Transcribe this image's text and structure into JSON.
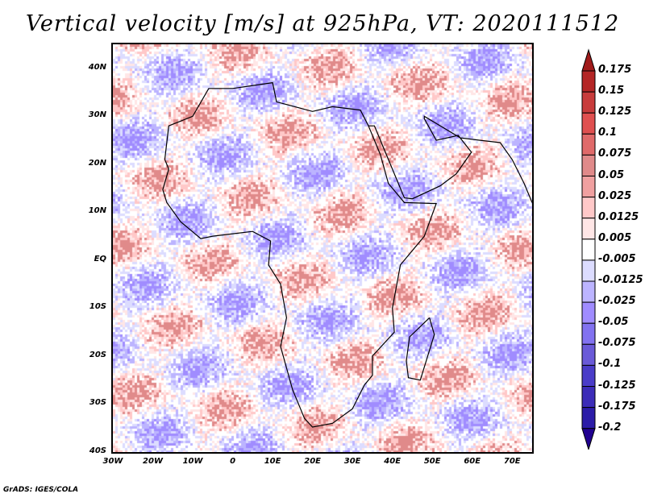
{
  "title": "Vertical velocity [m/s] at 925hPa, VT: 2020111512",
  "credit": "GrADS: IGES/COLA",
  "map": {
    "lon_range": [
      -30,
      75
    ],
    "lat_range": [
      -40,
      45
    ],
    "lat_labels": [
      {
        "lat": 40,
        "label": "40N"
      },
      {
        "lat": 30,
        "label": "30N"
      },
      {
        "lat": 20,
        "label": "20N"
      },
      {
        "lat": 10,
        "label": "10N"
      },
      {
        "lat": 0,
        "label": "EQ"
      },
      {
        "lat": -10,
        "label": "10S"
      },
      {
        "lat": -20,
        "label": "20S"
      },
      {
        "lat": -30,
        "label": "30S"
      },
      {
        "lat": -40,
        "label": "40S"
      }
    ],
    "lon_labels": [
      {
        "lon": -30,
        "label": "30W"
      },
      {
        "lon": -20,
        "label": "20W"
      },
      {
        "lon": -10,
        "label": "10W"
      },
      {
        "lon": 0,
        "label": "0"
      },
      {
        "lon": 10,
        "label": "10E"
      },
      {
        "lon": 20,
        "label": "20E"
      },
      {
        "lon": 30,
        "label": "30E"
      },
      {
        "lon": 40,
        "label": "40E"
      },
      {
        "lon": 50,
        "label": "50E"
      },
      {
        "lon": 60,
        "label": "60E"
      },
      {
        "lon": 70,
        "label": "70E"
      }
    ]
  },
  "colorbar": {
    "labels": [
      "0.175",
      "0.15",
      "0.125",
      "0.1",
      "0.075",
      "0.05",
      "0.025",
      "0.0125",
      "0.005",
      "-0.005",
      "-0.0125",
      "-0.025",
      "-0.05",
      "-0.075",
      "-0.1",
      "-0.125",
      "-0.175",
      "-0.2"
    ],
    "colors": [
      "#a01a1a",
      "#b42626",
      "#c83c3c",
      "#e05050",
      "#e06a6a",
      "#e08a8a",
      "#f0a0a0",
      "#ffc8c8",
      "#ffe6e6",
      "#ffffff",
      "#dcdcff",
      "#bcb4ff",
      "#a08cff",
      "#8272f0",
      "#6a5ad8",
      "#4a3cc8",
      "#3c2cb8",
      "#2c1ca8",
      "#200090"
    ]
  }
}
